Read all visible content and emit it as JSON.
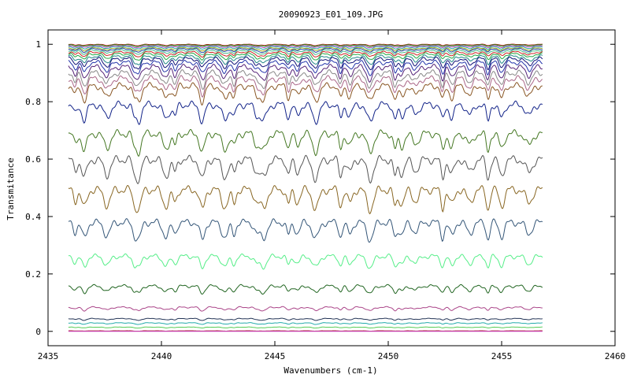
{
  "chart_data": {
    "type": "line",
    "title": "20090923_E01_109.JPG",
    "xlabel": "Wavenumbers (cm-1)",
    "ylabel": "Transmitance",
    "xlim": [
      2435,
      2460
    ],
    "ylim": [
      -0.05,
      1.05
    ],
    "xticks": [
      2435,
      2440,
      2445,
      2450,
      2455,
      2460
    ],
    "yticks": [
      0,
      0.2,
      0.4,
      0.6,
      0.8,
      1
    ],
    "ytick_labels": [
      "0",
      "0.2",
      "0.4",
      "0.6",
      "0.8",
      "1"
    ],
    "grid": false,
    "legend": "none",
    "x_range_data": [
      2435.9,
      2456.8
    ],
    "absorption_line_positions": [
      2436.2,
      2436.6,
      2437.6,
      2438.8,
      2439.0,
      2440.2,
      2440.6,
      2441.8,
      2442.8,
      2443.2,
      2444.2,
      2444.5,
      2445.6,
      2446.0,
      2446.8,
      2447.9,
      2448.3,
      2449.2,
      2450.3,
      2450.6,
      2451.2,
      2452.4,
      2452.8,
      2453.6,
      2454.4,
      2455.0,
      2456.2
    ],
    "series": [
      {
        "baseline": 1.0,
        "depth": 0.004,
        "color": "#aa2222"
      },
      {
        "baseline": 0.998,
        "depth": 0.005,
        "color": "#22aa22"
      },
      {
        "baseline": 0.995,
        "depth": 0.006,
        "color": "#cc44cc"
      },
      {
        "baseline": 0.992,
        "depth": 0.008,
        "color": "#22aaaa"
      },
      {
        "baseline": 0.988,
        "depth": 0.01,
        "color": "#aaaa22"
      },
      {
        "baseline": 0.985,
        "depth": 0.012,
        "color": "#2244aa"
      },
      {
        "baseline": 0.98,
        "depth": 0.014,
        "color": "#44bb88"
      },
      {
        "baseline": 0.974,
        "depth": 0.016,
        "color": "#cc2222"
      },
      {
        "baseline": 0.968,
        "depth": 0.02,
        "color": "#22aa44"
      },
      {
        "baseline": 0.96,
        "depth": 0.026,
        "color": "#228888"
      },
      {
        "baseline": 0.952,
        "depth": 0.032,
        "color": "#111177"
      },
      {
        "baseline": 0.94,
        "depth": 0.038,
        "color": "#2233aa"
      },
      {
        "baseline": 0.925,
        "depth": 0.045,
        "color": "#552277"
      },
      {
        "baseline": 0.905,
        "depth": 0.05,
        "color": "#888888"
      },
      {
        "baseline": 0.885,
        "depth": 0.052,
        "color": "#aa6688"
      },
      {
        "baseline": 0.86,
        "depth": 0.055,
        "color": "#885522"
      },
      {
        "baseline": 0.795,
        "depth": 0.06,
        "color": "#112288"
      },
      {
        "baseline": 0.695,
        "depth": 0.065,
        "color": "#447722"
      },
      {
        "baseline": 0.605,
        "depth": 0.07,
        "color": "#555555"
      },
      {
        "baseline": 0.5,
        "depth": 0.07,
        "color": "#886622"
      },
      {
        "baseline": 0.385,
        "depth": 0.06,
        "color": "#335577"
      },
      {
        "baseline": 0.265,
        "depth": 0.04,
        "color": "#55ee88"
      },
      {
        "baseline": 0.16,
        "depth": 0.025,
        "color": "#226622"
      },
      {
        "baseline": 0.085,
        "depth": 0.012,
        "color": "#aa4488"
      },
      {
        "baseline": 0.045,
        "depth": 0.006,
        "color": "#223355"
      },
      {
        "baseline": 0.03,
        "depth": 0.005,
        "color": "#22aaaa"
      },
      {
        "baseline": 0.015,
        "depth": 0.003,
        "color": "#55cc55"
      },
      {
        "baseline": 0.002,
        "depth": 0.001,
        "color": "#aa2222"
      },
      {
        "baseline": 0.0,
        "depth": 0.0,
        "color": "#cc44cc"
      }
    ]
  }
}
